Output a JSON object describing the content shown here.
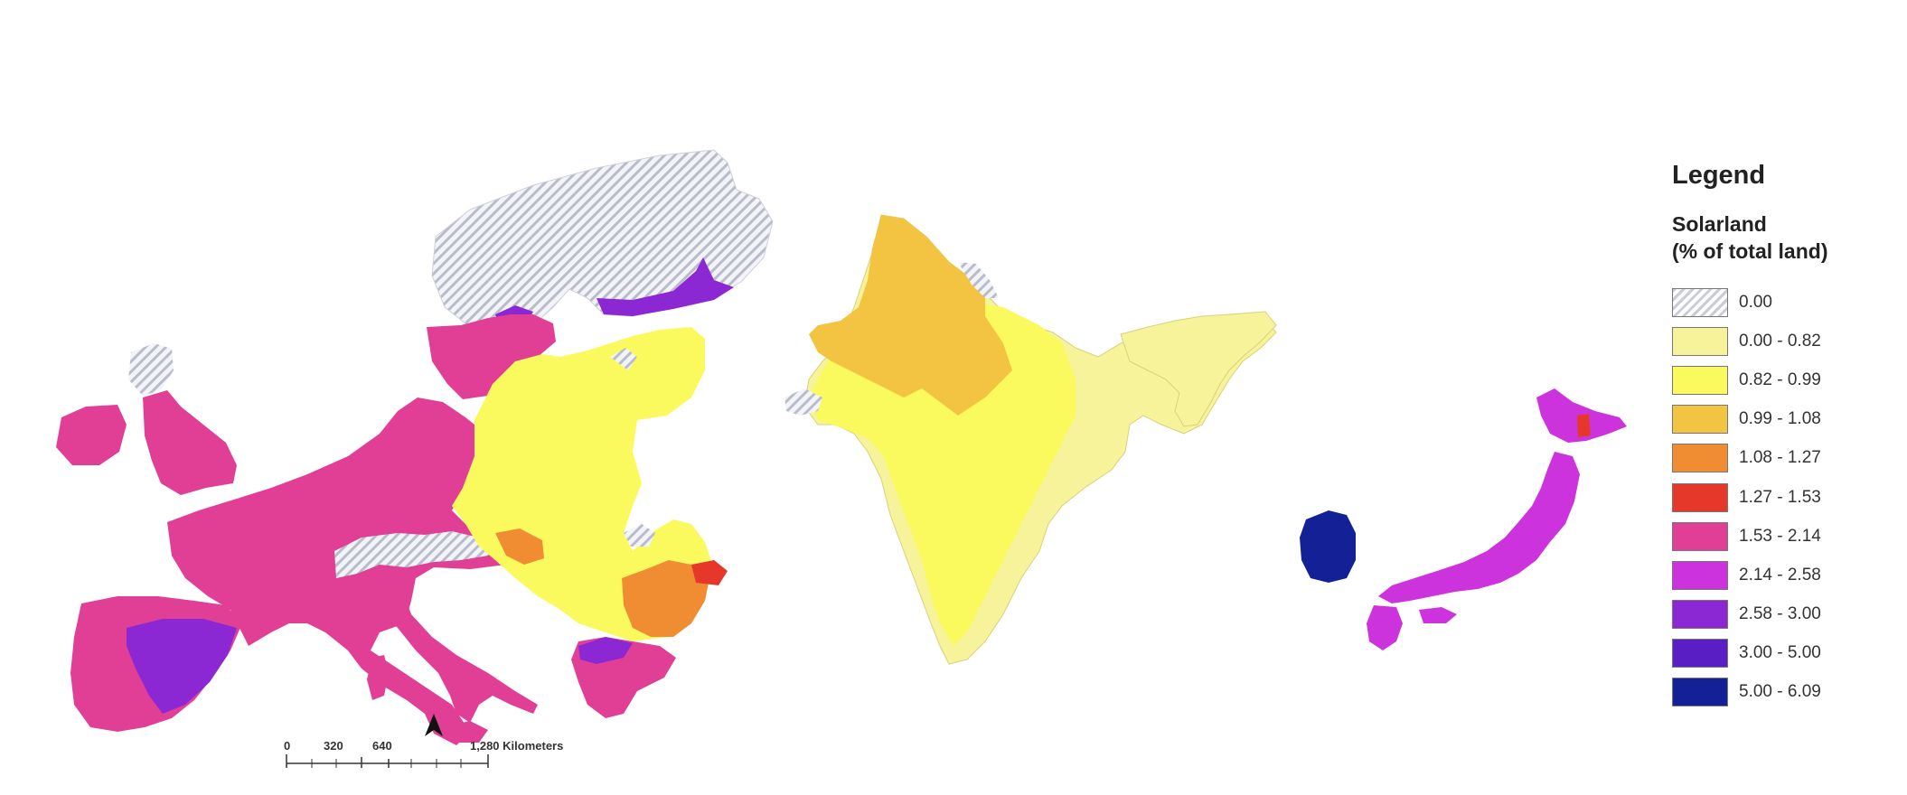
{
  "legend": {
    "title": "Legend",
    "subtitle_line1": "Solarland",
    "subtitle_line2": "(% of total land)",
    "classes": [
      {
        "label": "0.00",
        "color": "#c9ccd8",
        "pattern": "hatched"
      },
      {
        "label": "0.00 - 0.82",
        "color": "#f6f39a"
      },
      {
        "label": "0.82 - 0.99",
        "color": "#fafa5e"
      },
      {
        "label": "0.99 - 1.08",
        "color": "#f3c441"
      },
      {
        "label": "1.08 - 1.27",
        "color": "#f08c31"
      },
      {
        "label": "1.27 - 1.53",
        "color": "#e5382b"
      },
      {
        "label": "1.53 - 2.14",
        "color": "#e13f95"
      },
      {
        "label": "2.14 - 2.58",
        "color": "#cc33dd"
      },
      {
        "label": "2.58 - 3.00",
        "color": "#8b27d3"
      },
      {
        "label": "3.00 - 5.00",
        "color": "#5a1fc4"
      },
      {
        "label": "5.00 - 6.09",
        "color": "#142096"
      }
    ]
  },
  "scale_bar": {
    "ticks": [
      "0",
      "320",
      "640"
    ],
    "end_label": "1,280 Kilometers"
  },
  "north_arrow": {
    "icon": "north-arrow-icon"
  },
  "regions": [
    {
      "name": "Europe"
    },
    {
      "name": "India"
    },
    {
      "name": "Korea"
    },
    {
      "name": "Japan"
    }
  ]
}
